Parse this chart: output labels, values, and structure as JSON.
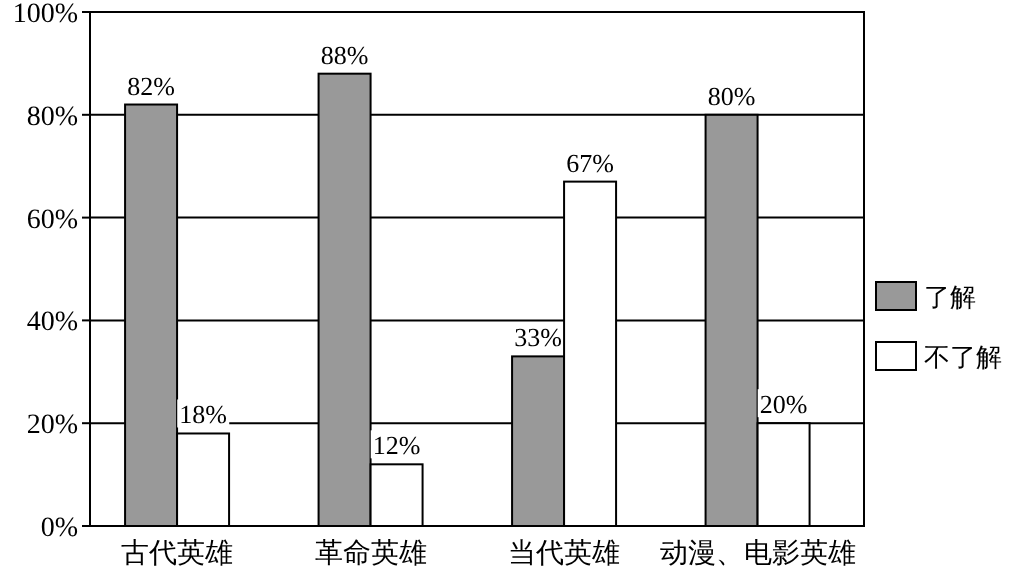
{
  "chart_data": {
    "type": "bar",
    "categories": [
      "古代英雄",
      "革命英雄",
      "当代英雄",
      "动漫、电影英雄"
    ],
    "series": [
      {
        "name": "了解",
        "color": "#999999",
        "values": [
          82,
          88,
          33,
          80
        ],
        "value_labels": [
          "82%",
          "88%",
          "33%",
          "80%"
        ]
      },
      {
        "name": "不了解",
        "color": "#ffffff",
        "values": [
          18,
          12,
          67,
          20
        ],
        "value_labels": [
          "18%",
          "12%",
          "67%",
          "20%"
        ]
      }
    ],
    "ylim": [
      0,
      100
    ],
    "yticks": [
      {
        "value": 0,
        "label": "0%"
      },
      {
        "value": 20,
        "label": "20%"
      },
      {
        "value": 40,
        "label": "40%"
      },
      {
        "value": 60,
        "label": "60%"
      },
      {
        "value": 80,
        "label": "80%"
      },
      {
        "value": 100,
        "label": "100%"
      }
    ],
    "grid": "y",
    "legend": "right"
  }
}
